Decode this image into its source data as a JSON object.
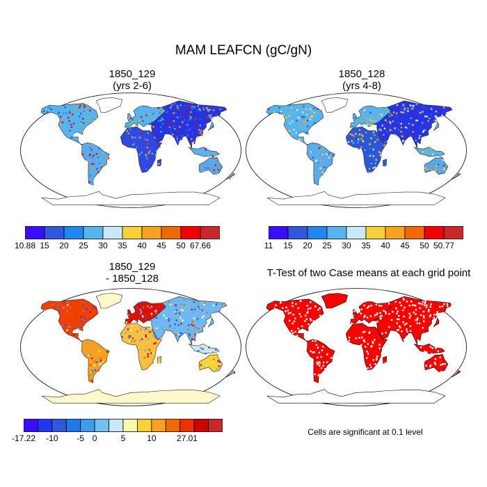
{
  "title": "MAM LEAFCN (gC/gN)",
  "panels": [
    {
      "title1": "1850_129",
      "title2": "(yrs 2-6)"
    },
    {
      "title1": "1850_128",
      "title2": "(yrs 4-8)"
    },
    {
      "title1": "1850_129",
      "title2": "- 1850_128"
    },
    {
      "title1": "T-Test of two Case means at each grid point",
      "title2": ""
    }
  ],
  "colorbars": [
    {
      "labels": [
        "10.88",
        "15",
        "20",
        "25",
        "30",
        "35",
        "40",
        "45",
        "50",
        "67.66"
      ],
      "colors": [
        "#3a0dff",
        "#3058dc",
        "#1e88f0",
        "#58b4ec",
        "#c8e8f8",
        "#f8d038",
        "#f8a020",
        "#f06a00",
        "#f00000",
        "#c82828"
      ]
    },
    {
      "labels": [
        "11",
        "15",
        "20",
        "25",
        "30",
        "35",
        "40",
        "45",
        "50",
        "50.77"
      ],
      "colors": [
        "#3a0dff",
        "#3058dc",
        "#1e88f0",
        "#58b4ec",
        "#c8e8f8",
        "#f8d038",
        "#f8a020",
        "#f06a00",
        "#f00000",
        "#c82828"
      ]
    },
    {
      "labels": [
        "-17.22",
        "-10",
        "-5",
        "0",
        "5",
        "10",
        "27.01"
      ],
      "colors": [
        "#3a0dff",
        "#2036f0",
        "#3058dc",
        "#1e78e8",
        "#3c9cf0",
        "#70c0f0",
        "#c8e8f8",
        "#fff8a8",
        "#f8d038",
        "#f8a020",
        "#f06a00",
        "#f03000",
        "#d00000",
        "#c82828"
      ]
    }
  ],
  "note": "Cells are significant at 0.1 level",
  "colors": {
    "ocean": "#ffffff",
    "outline": "#000000",
    "significant": "#ff0000"
  }
}
